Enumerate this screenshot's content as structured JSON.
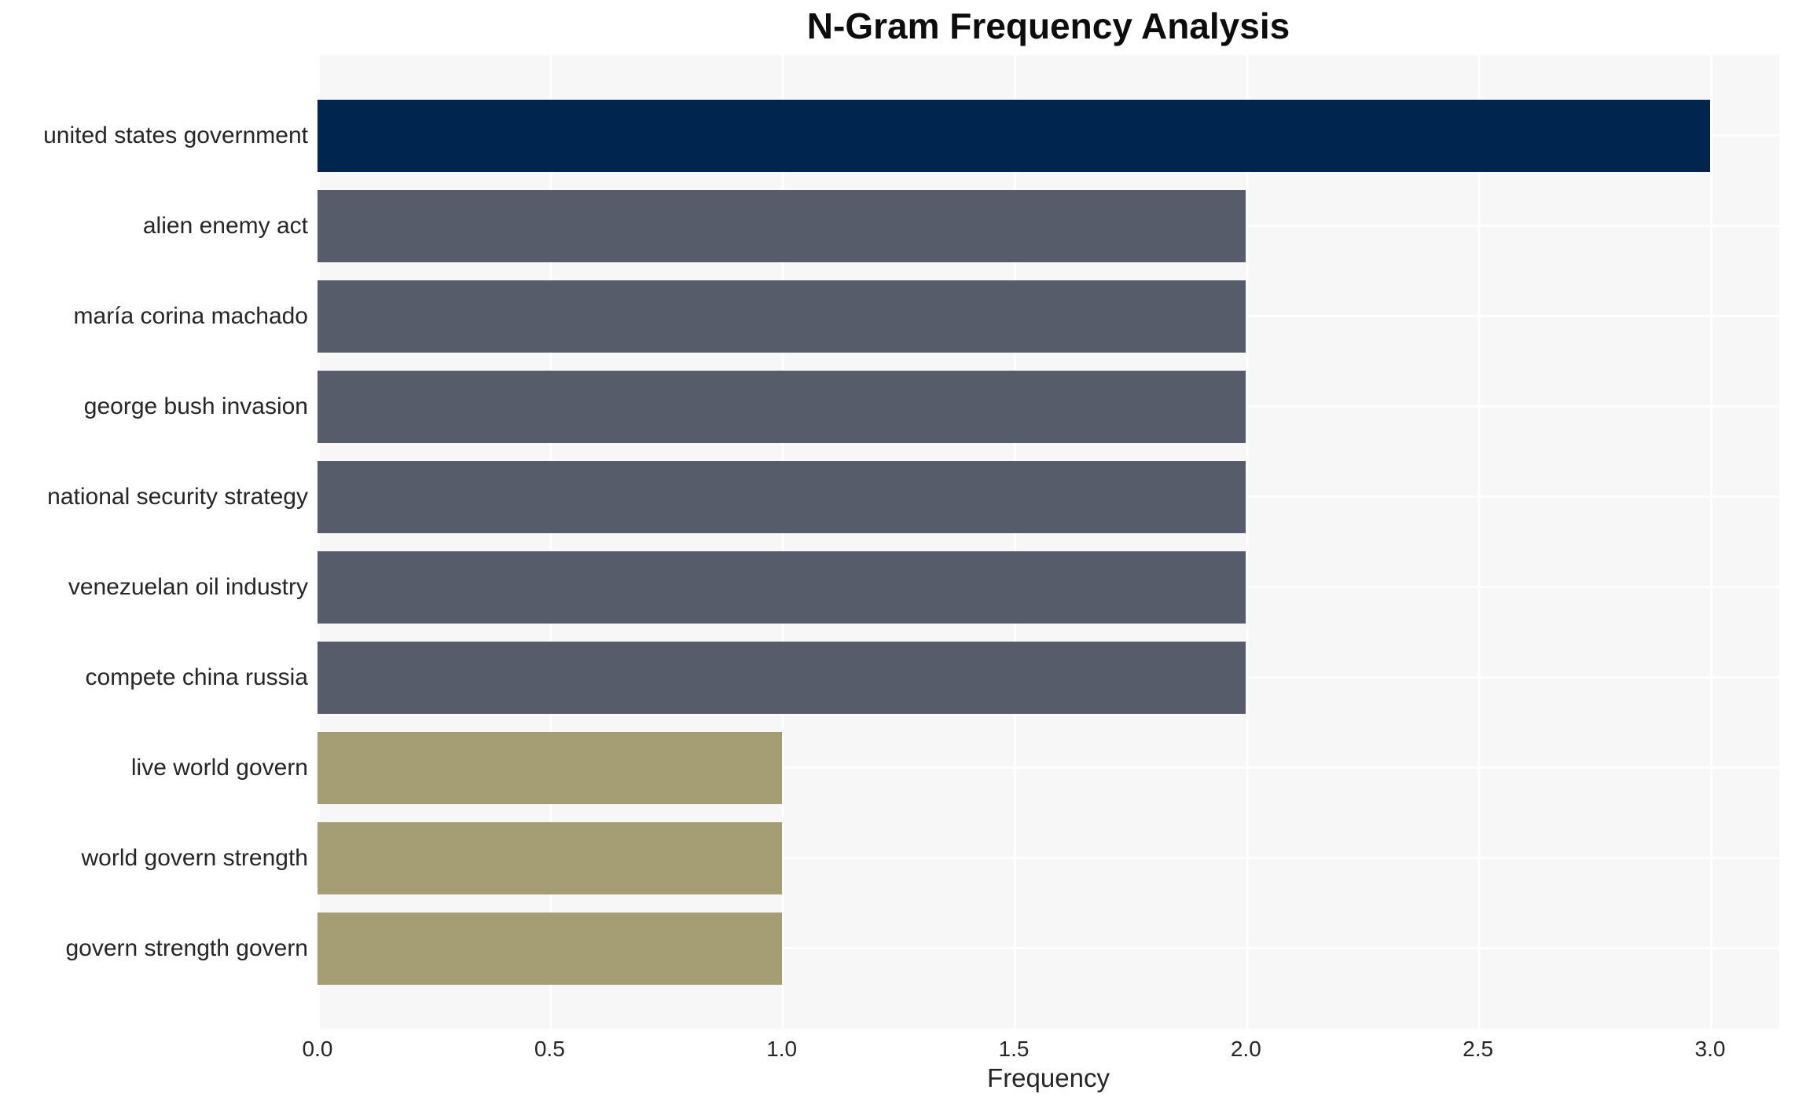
{
  "chart_data": {
    "type": "bar",
    "orientation": "horizontal",
    "title": "N-Gram Frequency Analysis",
    "xlabel": "Frequency",
    "ylabel": "",
    "categories": [
      "united states government",
      "alien enemy act",
      "maría corina machado",
      "george bush invasion",
      "national security strategy",
      "venezuelan oil industry",
      "compete china russia",
      "live world govern",
      "world govern strength",
      "govern strength govern"
    ],
    "values": [
      3,
      2,
      2,
      2,
      2,
      2,
      2,
      1,
      1,
      1
    ],
    "bar_colors": [
      "#00254e",
      "#565c6a",
      "#565c6a",
      "#565c6a",
      "#565c6a",
      "#565c6a",
      "#565c6a",
      "#a59e74",
      "#a59e74",
      "#a59e74"
    ],
    "xticks": [
      0.0,
      0.5,
      1.0,
      1.5,
      2.0,
      2.5,
      3.0
    ],
    "xtick_labels": [
      "0.0",
      "0.5",
      "1.0",
      "1.5",
      "2.0",
      "2.5",
      "3.0"
    ],
    "xlim": [
      0,
      3.15
    ],
    "grid": true,
    "legend_position": "none",
    "plot_bg_color": "#f7f7f7",
    "grid_color": "#ffffff",
    "text_color": "#262626"
  }
}
